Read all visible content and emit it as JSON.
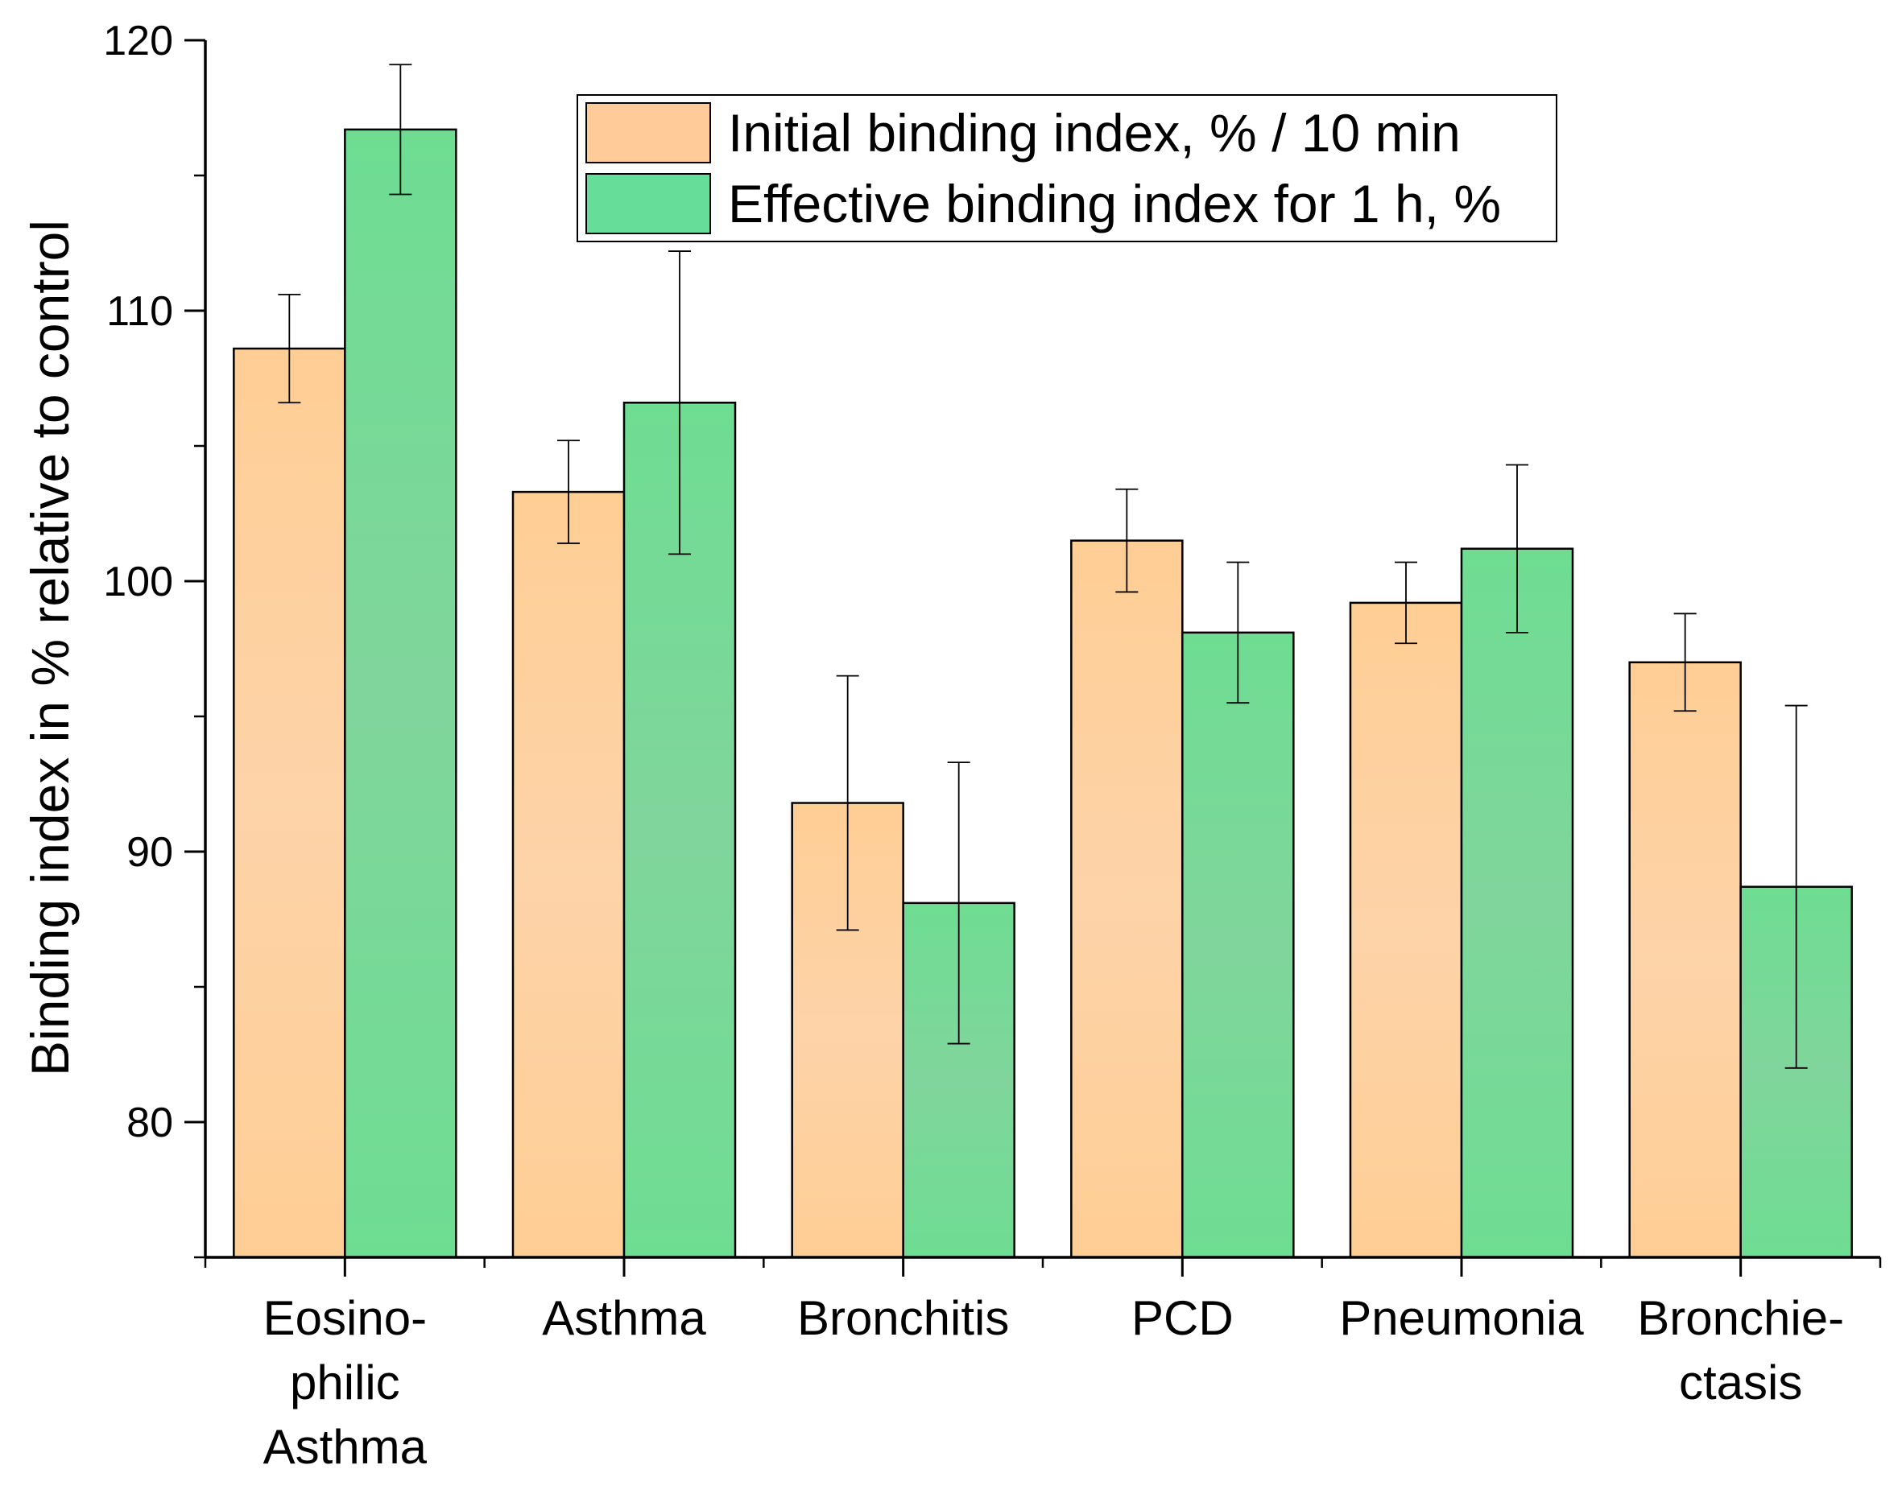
{
  "chart_data": {
    "type": "bar",
    "title": "",
    "xlabel": "",
    "ylabel": "Binding index in % relative to control",
    "ylim": [
      75,
      120
    ],
    "yticks": [
      80,
      90,
      100,
      110,
      120
    ],
    "grid": false,
    "legend_position": "top-center",
    "categories": [
      [
        "Eosino-",
        "philic",
        "Asthma"
      ],
      [
        "Asthma"
      ],
      [
        "Bronchitis"
      ],
      [
        "PCD"
      ],
      [
        "Pneumonia"
      ],
      [
        "Bronchie-",
        "ctasis"
      ]
    ],
    "series": [
      {
        "name": "Initial binding index, % / 10 min",
        "color": "#FFCC99",
        "values": [
          108.6,
          103.3,
          91.8,
          101.5,
          99.2,
          97.0
        ],
        "errors": [
          2.0,
          1.9,
          4.7,
          1.9,
          1.5,
          1.8
        ]
      },
      {
        "name": "Effective binding index for 1 h, %",
        "color": "#66DD99",
        "values": [
          116.7,
          106.6,
          88.1,
          98.1,
          101.2,
          88.7
        ],
        "errors": [
          2.4,
          5.6,
          5.2,
          2.6,
          3.1,
          6.7
        ]
      }
    ]
  }
}
